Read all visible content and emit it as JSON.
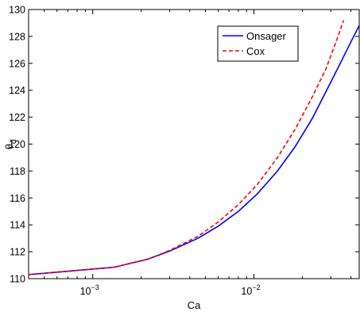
{
  "chart_data": {
    "type": "line",
    "title": "",
    "xlabel": "Ca",
    "ylabel": "θ",
    "ylabel_subscript": "d",
    "x_scale": "log",
    "xlim": [
      0.0004,
      0.045
    ],
    "ylim": [
      110,
      130
    ],
    "x_ticks": [
      {
        "value": 0.001,
        "base": "10",
        "exp": "−3"
      },
      {
        "value": 0.01,
        "base": "10",
        "exp": "−2"
      }
    ],
    "y_ticks": [
      110,
      112,
      114,
      116,
      118,
      120,
      122,
      124,
      126,
      128,
      130
    ],
    "grid": false,
    "legend_position": "top-right",
    "series": [
      {
        "name": "Onsager",
        "color": "#0000ff",
        "style": "solid",
        "x": [
          0.0004,
          0.00136,
          0.0022,
          0.003,
          0.0045,
          0.006,
          0.008,
          0.0105,
          0.014,
          0.018,
          0.023,
          0.028,
          0.034,
          0.04,
          0.045
        ],
        "y": [
          110.3,
          110.85,
          111.45,
          112.05,
          113.0,
          113.9,
          115.0,
          116.3,
          118.0,
          119.8,
          121.9,
          123.9,
          125.9,
          127.6,
          128.8
        ]
      },
      {
        "name": "Cox",
        "color": "#ff0000",
        "style": "dashed",
        "x": [
          0.0004,
          0.00136,
          0.0022,
          0.003,
          0.0045,
          0.006,
          0.008,
          0.0105,
          0.014,
          0.018,
          0.023,
          0.028,
          0.033,
          0.036
        ],
        "y": [
          110.3,
          110.85,
          111.45,
          112.1,
          113.15,
          114.2,
          115.5,
          117.0,
          119.0,
          121.1,
          123.5,
          125.6,
          127.9,
          129.2
        ]
      }
    ]
  }
}
